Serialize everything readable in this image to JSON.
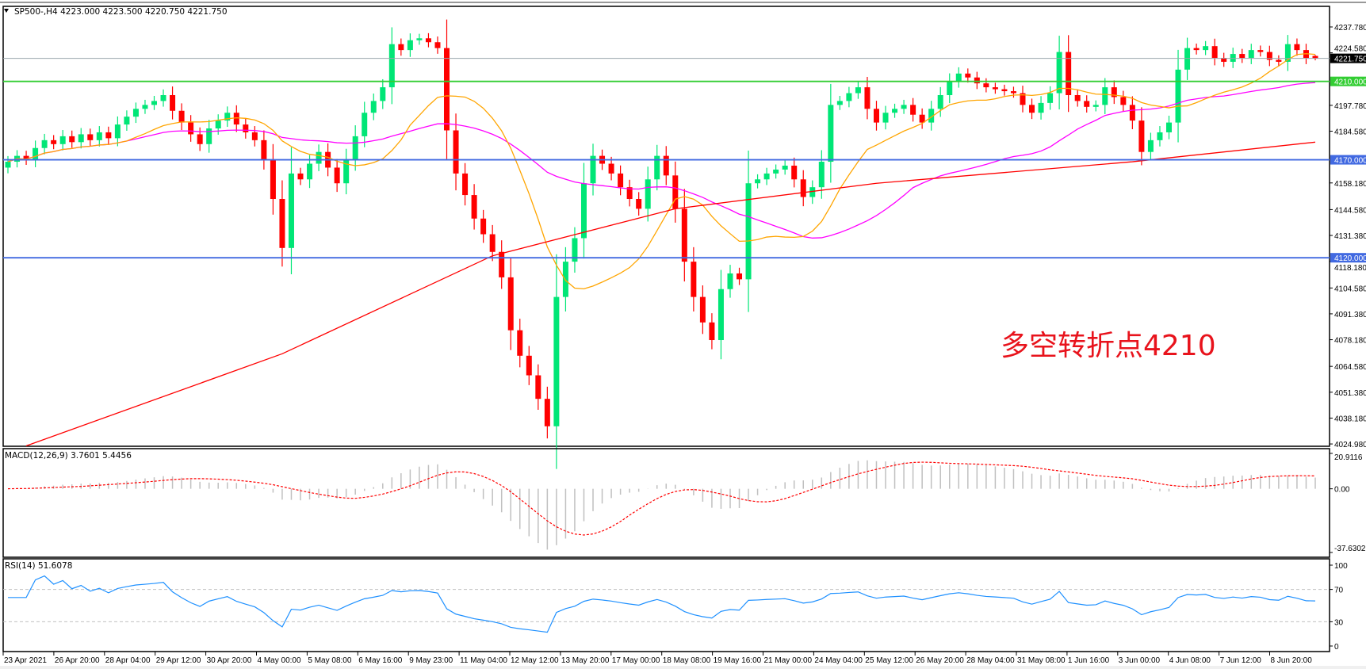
{
  "header": {
    "symbol_label": "SP500-,H4  4223.000 4223.500 4220.750 4221.750"
  },
  "annotation": {
    "text": "多空转折点4210",
    "color": "#e8131c"
  },
  "colors": {
    "bull": "#00e676",
    "bear": "#ff0000",
    "ma_fast": "#ffa500",
    "ma_mid": "#ff00ff",
    "ma_slow": "#ff0000",
    "level_green": "#32cd32",
    "level_blue": "#4169e1",
    "current_price": "#9aa4ad",
    "macd_hist": "#c0c0c0",
    "macd_signal": "#ff0000",
    "rsi": "#1e90ff"
  },
  "chart_data": {
    "type": "candlestick",
    "symbol": "SP500-",
    "timeframe": "H4",
    "ylim": [
      4023.8,
      4248.3
    ],
    "y_ticks": [
      "4237.780",
      "4224.580",
      "4197.780",
      "4184.580",
      "4158.180",
      "4144.580",
      "4131.380",
      "4118.180",
      "4104.580",
      "4091.380",
      "4078.180",
      "4064.580",
      "4051.380",
      "4038.180",
      "4024.980"
    ],
    "x_ticks": [
      "23 Apr 2021",
      "26 Apr 20:00",
      "28 Apr 04:00",
      "29 Apr 12:00",
      "30 Apr 20:00",
      "4 May 00:00",
      "5 May 08:00",
      "6 May 16:00",
      "9 May 23:00",
      "11 May 04:00",
      "12 May 12:00",
      "13 May 20:00",
      "17 May 00:00",
      "18 May 08:00",
      "19 May 16:00",
      "21 May 00:00",
      "24 May 04:00",
      "25 May 12:00",
      "26 May 20:00",
      "28 May 04:00",
      "31 May 08:00",
      "1 Jun 16:00",
      "3 Jun 00:00",
      "4 Jun 08:00",
      "7 Jun 12:00",
      "8 Jun 20:00"
    ],
    "closes": [
      4169,
      4172,
      4170,
      4176,
      4180,
      4178,
      4182,
      4179,
      4183,
      4180,
      4184,
      4181,
      4188,
      4192,
      4196,
      4198,
      4200,
      4203,
      4195,
      4189,
      4183,
      4178,
      4186,
      4190,
      4194,
      4188,
      4184,
      4180,
      4170,
      4150,
      4125,
      4163,
      4160,
      4168,
      4174,
      4166,
      4158,
      4170,
      4182,
      4194,
      4200,
      4207,
      4229,
      4226,
      4231,
      4232,
      4230,
      4227,
      4185,
      4163,
      4152,
      4140,
      4132,
      4123,
      4110,
      4083,
      4070,
      4060,
      4048,
      4034,
      4100,
      4118,
      4130,
      4158,
      4172,
      4168,
      4163,
      4156,
      4150,
      4145,
      4160,
      4172,
      4162,
      4145,
      4118,
      4100,
      4087,
      4078,
      4104,
      4112,
      4109,
      4158,
      4160,
      4163,
      4165,
      4167,
      4160,
      4151,
      4156,
      4169,
      4198,
      4200,
      4204,
      4207,
      4196,
      4189,
      4194,
      4196,
      4198,
      4193,
      4189,
      4196,
      4203,
      4210,
      4214,
      4212,
      4209,
      4207,
      4206,
      4205,
      4204,
      4198,
      4194,
      4199,
      4204,
      4225,
      4203,
      4200,
      4197,
      4198,
      4207,
      4202,
      4198,
      4190,
      4174,
      4180,
      4184,
      4189,
      4216,
      4227,
      4226,
      4228,
      4222,
      4220,
      4224,
      4222,
      4226,
      4225,
      4221,
      4220,
      4229,
      4226,
      4222,
      4221.75
    ],
    "last_bar": {
      "open": 4223.0,
      "high": 4223.5,
      "low": 4220.75,
      "close": 4221.75
    },
    "ma_slow_points": [
      [
        2,
        4024
      ],
      [
        30,
        4071
      ],
      [
        53,
        4121
      ],
      [
        73,
        4145
      ],
      [
        95,
        4158
      ],
      [
        123,
        4169
      ],
      [
        143,
        4179
      ]
    ],
    "levels": [
      {
        "value": 4210.0,
        "label": "4210.000",
        "color": "level_green"
      },
      {
        "value": 4170.0,
        "label": "4170.000",
        "color": "level_blue"
      },
      {
        "value": 4120.0,
        "label": "4120.000",
        "color": "level_blue"
      }
    ],
    "current_price": {
      "value": 4221.75,
      "label": "4221.750"
    },
    "macd": {
      "label": "MACD(12,26,9) 3.7601 5.4456",
      "params": [
        12,
        26,
        9
      ],
      "main": 3.7601,
      "signal": 5.4456,
      "ylim": [
        -37.6302,
        20.9116
      ],
      "ticks": [
        "20.9116",
        "0.00",
        "-37.6302"
      ]
    },
    "rsi": {
      "label": "RSI(14) 51.6078",
      "period": 14,
      "value": 51.6078,
      "ylim": [
        0,
        100
      ],
      "ticks": [
        "100",
        "70",
        "30",
        "0"
      ],
      "levels": [
        70,
        30
      ]
    }
  }
}
